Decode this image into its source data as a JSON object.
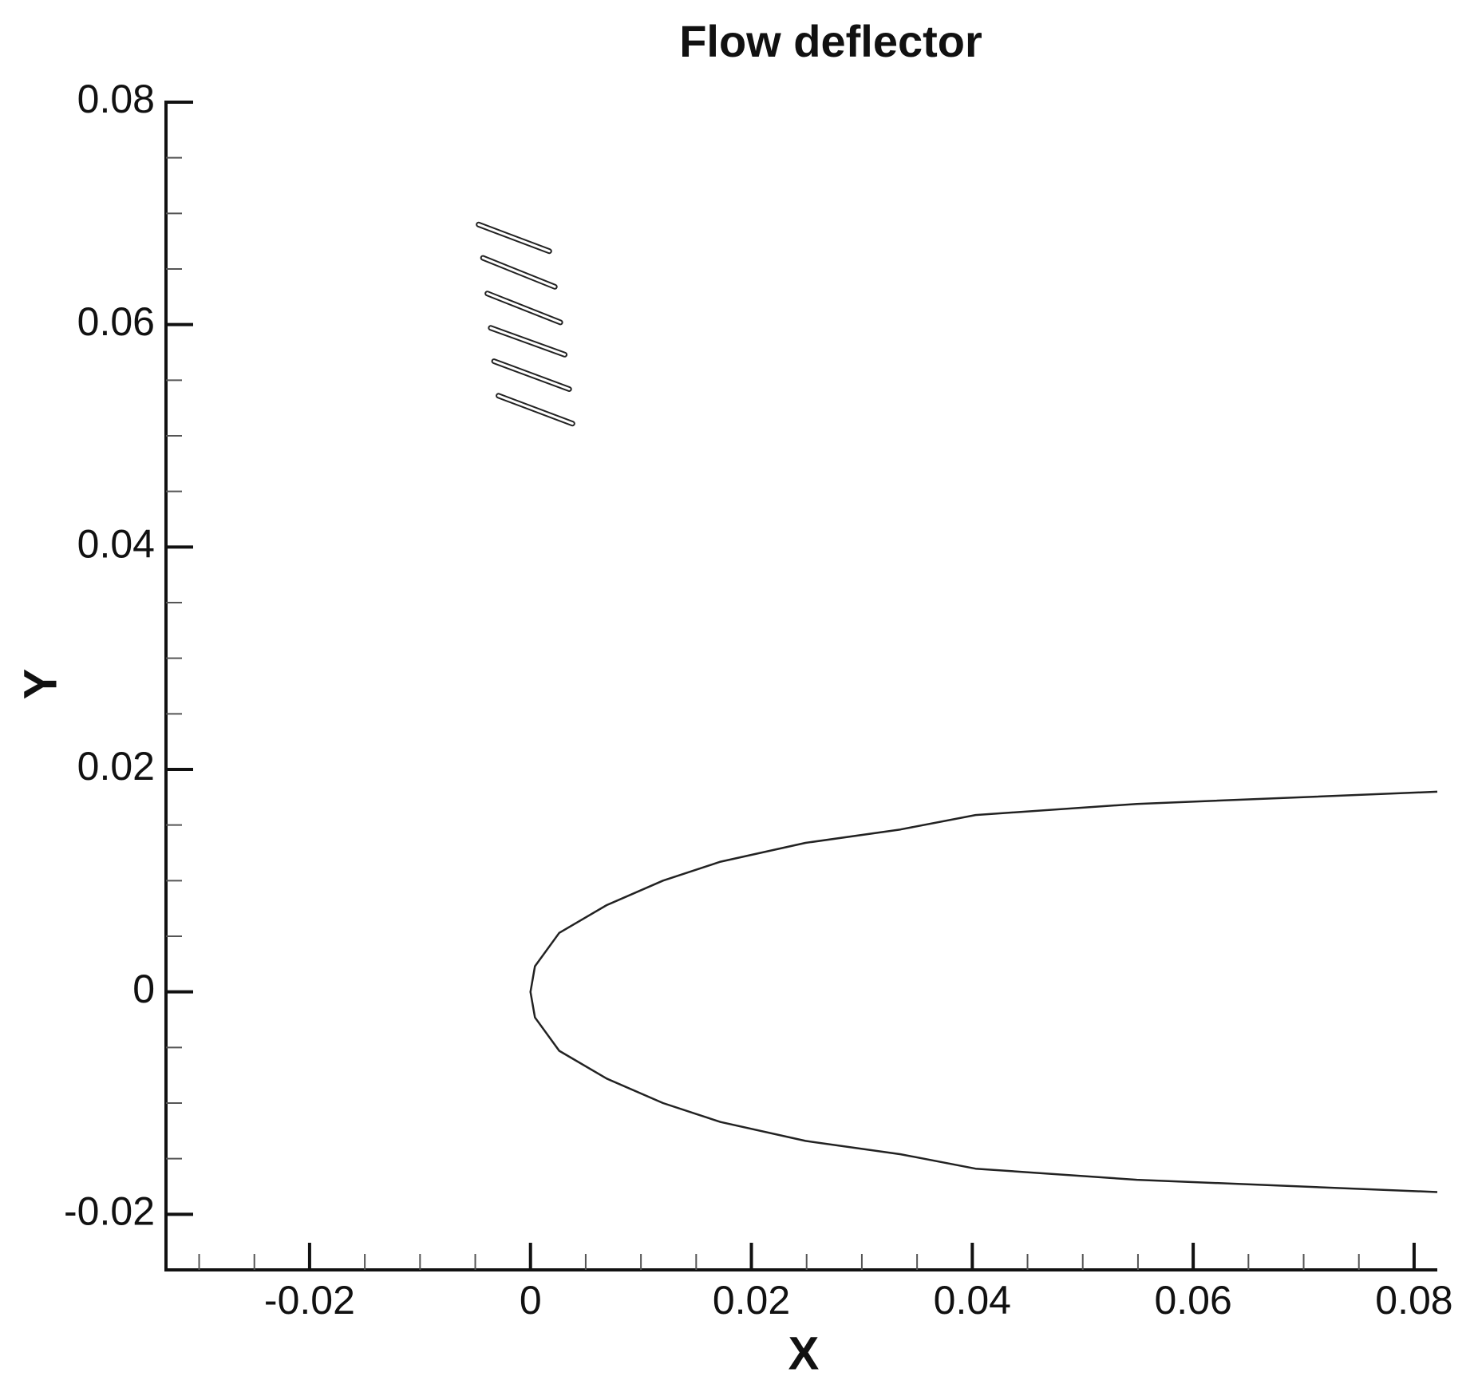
{
  "chart_data": {
    "type": "line",
    "title": "Flow deflector",
    "x_label": "X",
    "y_label": "Y",
    "xlim": [
      -0.033,
      0.0821
    ],
    "ylim": [
      -0.025,
      0.08
    ],
    "xticks": [
      -0.02,
      0,
      0.02,
      0.04,
      0.06,
      0.08
    ],
    "yticks": [
      -0.02,
      0,
      0.02,
      0.04,
      0.06,
      0.08
    ],
    "xminorticks": [
      -0.03,
      -0.025,
      -0.015,
      -0.01,
      -0.005,
      0.005,
      0.01,
      0.015,
      0.025,
      0.03,
      0.035,
      0.045,
      0.05,
      0.055,
      0.065,
      0.07,
      0.075
    ],
    "yminorticks": [
      -0.015,
      -0.01,
      -0.005,
      0.005,
      0.01,
      0.015,
      0.025,
      0.03,
      0.035,
      0.045,
      0.05,
      0.055,
      0.065,
      0.07,
      0.075
    ],
    "series": [
      {
        "color": "#222222",
        "x": [
          0.0821,
          0.0549,
          0.0403,
          0.0335,
          0.0249,
          0.0172,
          0.012,
          0.0069,
          0.0026,
          0.0004,
          0,
          0.0004,
          0.0026,
          0.0069,
          0.012,
          0.0172,
          0.0249,
          0.0335,
          0.0403,
          0.0549,
          0.0821
        ],
        "values": [
          0.018,
          0.0169,
          0.0159,
          0.0146,
          0.0134,
          0.0117,
          0.01,
          0.0078,
          0.0053,
          0.0023,
          0,
          -0.0023,
          -0.0053,
          -0.0078,
          -0.01,
          -0.0117,
          -0.0134,
          -0.0146,
          -0.0159,
          -0.0169,
          -0.018
        ]
      },
      {
        "color": "#222222",
        "x": [
          -0.0047,
          0.0017
        ],
        "values": [
          0.069,
          0.0666
        ]
      },
      {
        "color": "#222222",
        "x": [
          -0.0043,
          0.0022
        ],
        "values": [
          0.066,
          0.0634
        ]
      },
      {
        "color": "#222222",
        "x": [
          -0.0039,
          0.0027
        ],
        "values": [
          0.0628,
          0.0602
        ]
      },
      {
        "color": "#222222",
        "x": [
          -0.0036,
          0.0031
        ],
        "values": [
          0.0597,
          0.0573
        ]
      },
      {
        "color": "#222222",
        "x": [
          -0.0033,
          0.0035
        ],
        "values": [
          0.0567,
          0.0542
        ]
      },
      {
        "color": "#222222",
        "x": [
          -0.0029,
          0.0038
        ],
        "values": [
          0.0536,
          0.0511
        ]
      }
    ]
  }
}
